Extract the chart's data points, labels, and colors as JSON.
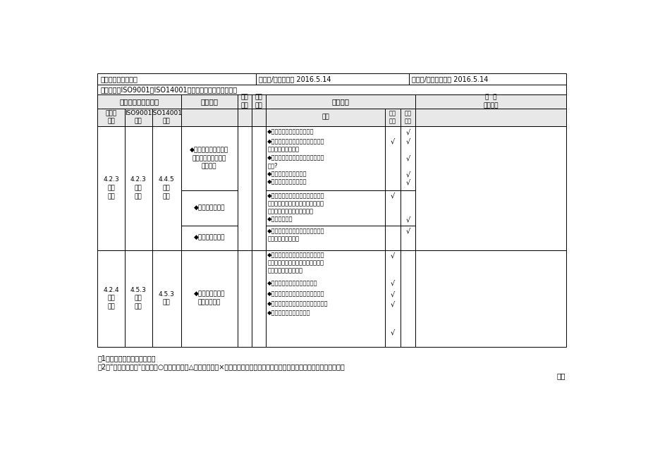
{
  "title_row": [
    "受审核部门：综管部",
    "编制人/日期：王丹 2016.5.14",
    "审核人/日期：纪阳林 2016.5.14"
  ],
  "standard_row": "审核准则：ISO9001、ISO14001、体系文件、适用法律法规",
  "header1": "一体化管理体系要求",
  "header2": "检查内容",
  "header3": "是否\n适用",
  "header4": "参考\n文件",
  "header5": "检查方法",
  "header6": "检查结果记录",
  "subheader_left": [
    "一体化\n条款",
    "ISO9001\n条款",
    "ISO14001\n条款"
  ],
  "subheader_right": [
    "提问",
    "文件\n查阅",
    "现场\n检查"
  ],
  "note1": "注1：文件查阅含记录的查阅。",
  "note2": "注2：检查结果记录栏：符合○，轻微不符合△，严重不符合×（有不符合时要记录证据，并要求受审核部门当事人签名确认）。",
  "continued": "续表",
  "bg_color": "#ffffff",
  "border_color": "#000000",
  "header_bg": "#e8e8e8",
  "font_color": "#000000"
}
